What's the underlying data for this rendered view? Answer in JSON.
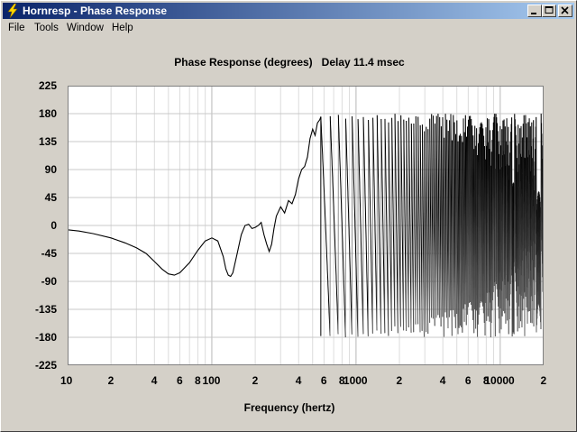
{
  "window": {
    "title": "Hornresp - Phase Response"
  },
  "menu": {
    "items": [
      "File",
      "Tools",
      "Window",
      "Help"
    ]
  },
  "chart_data": {
    "type": "line",
    "title": "Phase Response (degrees)   Delay 11.4 msec",
    "xlabel": "Frequency (hertz)",
    "ylabel": "",
    "xscale": "log",
    "xlim": [
      10,
      20000
    ],
    "ylim": [
      -225,
      225
    ],
    "yticks": [
      225,
      180,
      135,
      90,
      45,
      0,
      -45,
      -90,
      -135,
      -180,
      -225
    ],
    "ytick_labels": [
      "225",
      "180",
      "135",
      "90",
      "45",
      "0",
      "-45",
      "-90",
      "-135",
      "-180",
      "-225"
    ],
    "xticks": [
      10,
      20,
      40,
      60,
      80,
      100,
      200,
      400,
      600,
      800,
      1000,
      2000,
      4000,
      6000,
      8000,
      10000,
      20000
    ],
    "xtick_labels": [
      "10",
      "2",
      "4",
      "6",
      "8",
      "100",
      "2",
      "4",
      "6",
      "8",
      "1000",
      "2",
      "4",
      "6",
      "8",
      "10000",
      "2"
    ],
    "grid": true,
    "series": [
      {
        "color": "#000000",
        "x": [
          10,
          12,
          15,
          20,
          25,
          30,
          35,
          40,
          45,
          50,
          55,
          60,
          70,
          80,
          90,
          100,
          110,
          120,
          125,
          130,
          135,
          140,
          150,
          160,
          170,
          180,
          190,
          200,
          210,
          220,
          230,
          240,
          250,
          260,
          270,
          280,
          300,
          320,
          340,
          360,
          380,
          400,
          420,
          440,
          460,
          480,
          500,
          520,
          540,
          560,
          570
        ],
        "y": [
          -7,
          -9,
          -13,
          -20,
          -28,
          -36,
          -45,
          -58,
          -70,
          -78,
          -80,
          -76,
          -60,
          -40,
          -25,
          -20,
          -25,
          -50,
          -70,
          -80,
          -82,
          -76,
          -45,
          -15,
          0,
          2,
          -5,
          -3,
          0,
          5,
          -15,
          -30,
          -42,
          -30,
          -5,
          15,
          30,
          20,
          40,
          35,
          50,
          75,
          90,
          95,
          110,
          140,
          155,
          145,
          165,
          170,
          175
        ]
      }
    ]
  }
}
